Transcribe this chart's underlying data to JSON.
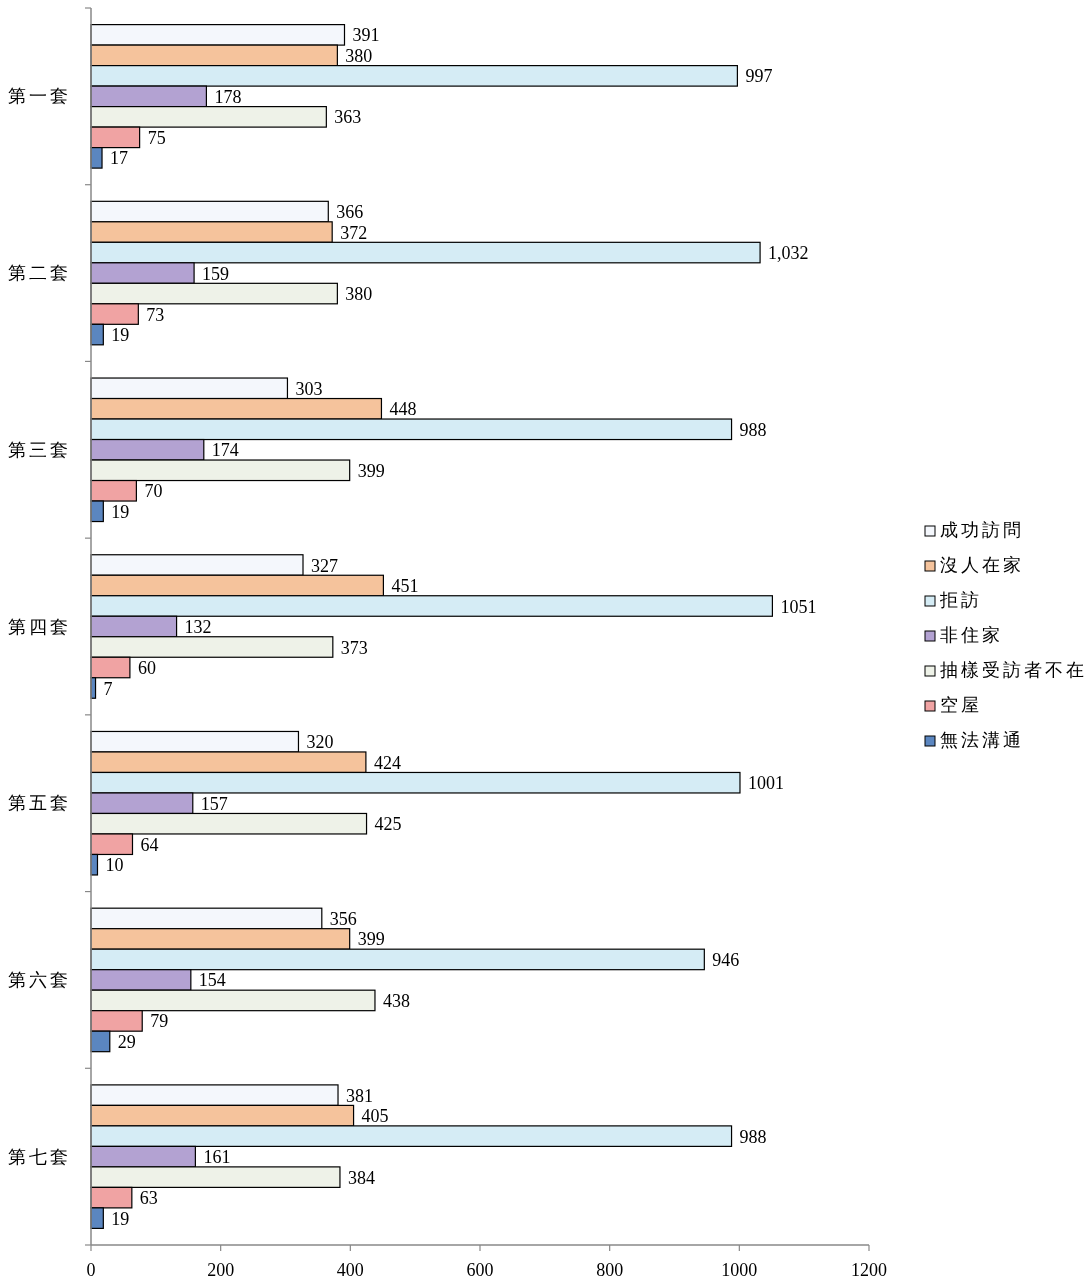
{
  "chart_data": {
    "type": "bar",
    "orientation": "horizontal",
    "categories": [
      "第一套",
      "第二套",
      "第三套",
      "第四套",
      "第五套",
      "第六套",
      "第七套"
    ],
    "series": [
      {
        "name": "成功訪問",
        "color": "#f4f7fc",
        "values": [
          391,
          366,
          303,
          327,
          320,
          356,
          381
        ],
        "value_labels": [
          "391",
          "366",
          "303",
          "327",
          "320",
          "356",
          "381"
        ]
      },
      {
        "name": "沒人在家",
        "color": "#f5c39c",
        "values": [
          380,
          372,
          448,
          451,
          424,
          399,
          405
        ],
        "value_labels": [
          "380",
          "372",
          "448",
          "451",
          "424",
          "399",
          "405"
        ]
      },
      {
        "name": "拒訪",
        "color": "#d5ecf5",
        "values": [
          997,
          1032,
          988,
          1051,
          1001,
          946,
          988
        ],
        "value_labels": [
          "997",
          "1,032",
          "988",
          "1051",
          "1001",
          "946",
          "988"
        ]
      },
      {
        "name": "非住家",
        "color": "#b3a2d2",
        "values": [
          178,
          159,
          174,
          132,
          157,
          154,
          161
        ],
        "value_labels": [
          "178",
          "159",
          "174",
          "132",
          "157",
          "154",
          "161"
        ]
      },
      {
        "name": "抽樣受訪者不在",
        "color": "#eef2e8",
        "values": [
          363,
          380,
          399,
          373,
          425,
          438,
          384
        ],
        "value_labels": [
          "363",
          "380",
          "399",
          "373",
          "425",
          "438",
          "384"
        ]
      },
      {
        "name": "空屋",
        "color": "#f0a3a3",
        "values": [
          75,
          73,
          70,
          60,
          64,
          79,
          63
        ],
        "value_labels": [
          "75",
          "73",
          "70",
          "60",
          "64",
          "79",
          "63"
        ]
      },
      {
        "name": "無法溝通",
        "color": "#5b86c0",
        "values": [
          17,
          19,
          19,
          7,
          10,
          29,
          19
        ],
        "value_labels": [
          "17",
          "19",
          "19",
          "7",
          "10",
          "29",
          "19"
        ]
      }
    ],
    "xlim": [
      0,
      1200
    ],
    "xticks": [
      0,
      200,
      400,
      600,
      800,
      1000,
      1200
    ],
    "legend": "right"
  }
}
